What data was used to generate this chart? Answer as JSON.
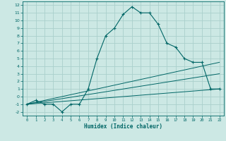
{
  "xlabel": "Humidex (Indice chaleur)",
  "bg_color": "#cce8e4",
  "grid_color": "#aad0cc",
  "line_color": "#006666",
  "xlim": [
    -0.5,
    22.5
  ],
  "ylim": [
    -2.5,
    12.5
  ],
  "yticks": [
    -2,
    -1,
    0,
    1,
    2,
    3,
    4,
    5,
    6,
    7,
    8,
    9,
    10,
    11,
    12
  ],
  "xticks": [
    0,
    1,
    2,
    3,
    4,
    5,
    6,
    7,
    8,
    9,
    10,
    11,
    12,
    13,
    14,
    15,
    16,
    17,
    18,
    19,
    20,
    21,
    22
  ],
  "series1_x": [
    0,
    1,
    2,
    3,
    4,
    5,
    6,
    7,
    8,
    9,
    10,
    11,
    12,
    13,
    14,
    15,
    16,
    17,
    18,
    19,
    20,
    21,
    22
  ],
  "series1_y": [
    -1,
    -0.5,
    -1,
    -1,
    -2,
    -1,
    -1,
    1,
    5,
    8,
    9,
    10.8,
    11.8,
    11,
    11,
    9.5,
    7,
    6.5,
    5,
    4.5,
    4.5,
    1,
    1
  ],
  "series2_x": [
    0,
    22
  ],
  "series2_y": [
    -1,
    1
  ],
  "series3_x": [
    0,
    22
  ],
  "series3_y": [
    -1,
    4.5
  ],
  "series4_x": [
    0,
    22
  ],
  "series4_y": [
    -1,
    3.0
  ]
}
